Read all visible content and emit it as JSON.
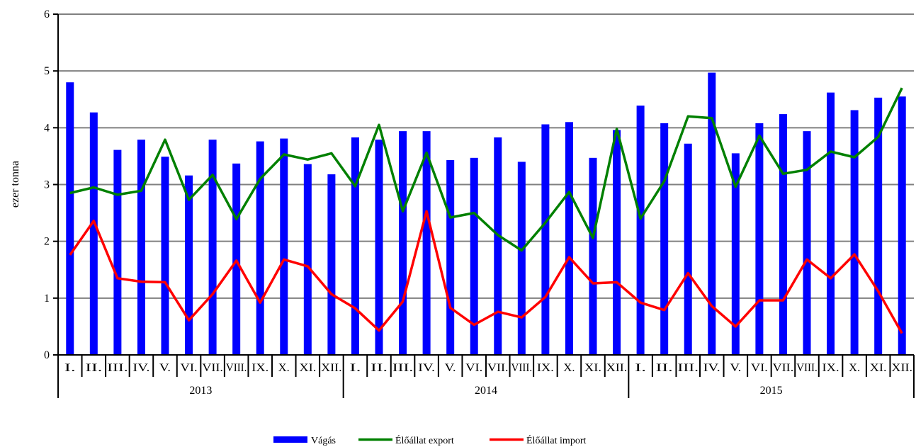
{
  "chart_data": {
    "type": "bar",
    "title": "",
    "ylabel": "ezer tonna",
    "xlabel": "",
    "ylim": [
      0,
      6
    ],
    "yticks": [
      0,
      1,
      2,
      3,
      4,
      5,
      6
    ],
    "grid": true,
    "legend_position": "bottom",
    "months": [
      "I.",
      "II.",
      "III.",
      "IV.",
      "V.",
      "VI.",
      "VII.",
      "VIII.",
      "IX.",
      "X.",
      "XI.",
      "XII.",
      "I.",
      "II.",
      "III.",
      "IV.",
      "V.",
      "VI.",
      "VII.",
      "VIII.",
      "IX.",
      "X.",
      "XI.",
      "XII.",
      "I.",
      "II.",
      "III.",
      "IV.",
      "V.",
      "VI.",
      "VII.",
      "VIII.",
      "IX.",
      "X.",
      "XI.",
      "XII."
    ],
    "years": [
      "2013",
      "2014",
      "2015"
    ],
    "series": [
      {
        "name": "Vágás",
        "type": "bar",
        "color": "#0000ff",
        "values": [
          4.8,
          4.27,
          3.61,
          3.79,
          3.49,
          3.16,
          3.79,
          3.37,
          3.76,
          3.81,
          3.36,
          3.18,
          3.83,
          3.79,
          3.94,
          3.94,
          3.43,
          3.47,
          3.83,
          3.4,
          4.06,
          4.1,
          3.47,
          3.96,
          4.39,
          4.08,
          3.72,
          4.97,
          3.55,
          4.08,
          4.24,
          3.94,
          4.62,
          4.31,
          4.53,
          4.55
        ]
      },
      {
        "name": "Élőállat export",
        "type": "line",
        "color": "#008000",
        "values": [
          2.85,
          2.95,
          2.82,
          2.89,
          3.79,
          2.73,
          3.17,
          2.39,
          3.1,
          3.53,
          3.44,
          3.55,
          2.97,
          4.05,
          2.53,
          3.56,
          2.42,
          2.5,
          2.11,
          1.84,
          2.33,
          2.87,
          2.06,
          3.98,
          2.4,
          3.06,
          4.2,
          4.17,
          2.96,
          3.86,
          3.19,
          3.26,
          3.58,
          3.48,
          3.84,
          4.7
        ]
      },
      {
        "name": "Élőállat import",
        "type": "line",
        "color": "#ff0000",
        "values": [
          1.76,
          2.36,
          1.35,
          1.29,
          1.28,
          0.61,
          1.07,
          1.66,
          0.92,
          1.68,
          1.56,
          1.07,
          0.82,
          0.43,
          0.94,
          2.53,
          0.83,
          0.53,
          0.76,
          0.66,
          1.02,
          1.72,
          1.26,
          1.28,
          0.92,
          0.79,
          1.44,
          0.86,
          0.5,
          0.96,
          0.96,
          1.68,
          1.35,
          1.77,
          1.12,
          0.38
        ]
      }
    ]
  }
}
